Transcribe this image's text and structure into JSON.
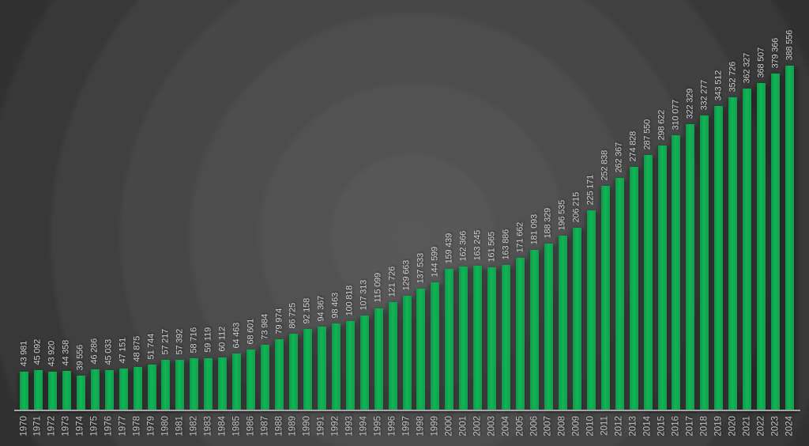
{
  "chart_data": {
    "type": "bar",
    "title": "",
    "xlabel": "",
    "ylabel": "",
    "ylim": [
      0,
      390000
    ],
    "grid": false,
    "legend": false,
    "orientation": "vertical",
    "number_format": "space-thousands",
    "bar_color": "#10ac52",
    "value_label_color": "#cfcfcf",
    "year_label_color": "#c2c2c2",
    "axis_color": "#a6a6a6",
    "background_center_color": "#595959",
    "background_edge_color": "#202020",
    "categories": [
      "1970",
      "1971",
      "1972",
      "1973",
      "1974",
      "1975",
      "1976",
      "1977",
      "1978",
      "1979",
      "1980",
      "1981",
      "1982",
      "1983",
      "1984",
      "1985",
      "1986",
      "1987",
      "1988",
      "1989",
      "1990",
      "1991",
      "1992",
      "1993",
      "1994",
      "1995",
      "1996",
      "1997",
      "1998",
      "1999",
      "2000",
      "2001",
      "2002",
      "2003",
      "2004",
      "2005",
      "2006",
      "2007",
      "2008",
      "2009",
      "2010",
      "2011",
      "2012",
      "2013",
      "2014",
      "2015",
      "2016",
      "2017",
      "2018",
      "2019",
      "2020",
      "2021",
      "2022",
      "2023",
      "2024"
    ],
    "values": [
      43981,
      45092,
      43920,
      44358,
      39556,
      46286,
      45033,
      47151,
      48875,
      51744,
      57217,
      57392,
      58716,
      59119,
      60112,
      64463,
      68601,
      73984,
      79974,
      86725,
      92158,
      94367,
      98463,
      100818,
      107313,
      115099,
      121726,
      129663,
      137533,
      144599,
      159439,
      162366,
      163245,
      161565,
      163886,
      171662,
      181093,
      188329,
      196535,
      206215,
      225171,
      252838,
      262367,
      274828,
      287550,
      298622,
      310077,
      322329,
      332277,
      343512,
      352726,
      362327,
      368507,
      379366,
      388556
    ],
    "labels": [
      "43 981",
      "45 092",
      "43 920",
      "44 358",
      "39 556",
      "46 286",
      "45 033",
      "47 151",
      "48 875",
      "51 744",
      "57 217",
      "57 392",
      "58 716",
      "59 119",
      "60 112",
      "64 463",
      "68 601",
      "73 984",
      "79 974",
      "86 725",
      "92 158",
      "94 367",
      "98 463",
      "100 818",
      "107 313",
      "115 099",
      "121 726",
      "129 663",
      "137 533",
      "144 599",
      "159 439",
      "162 366",
      "163 245",
      "161 565",
      "163 886",
      "171 662",
      "181 093",
      "188 329",
      "196 535",
      "206 215",
      "225 171",
      "252 838",
      "262 367",
      "274 828",
      "287 550",
      "298 622",
      "310 077",
      "322 329",
      "332 277",
      "343 512",
      "352 726",
      "362 327",
      "368 507",
      "379 366",
      "388 556"
    ]
  }
}
